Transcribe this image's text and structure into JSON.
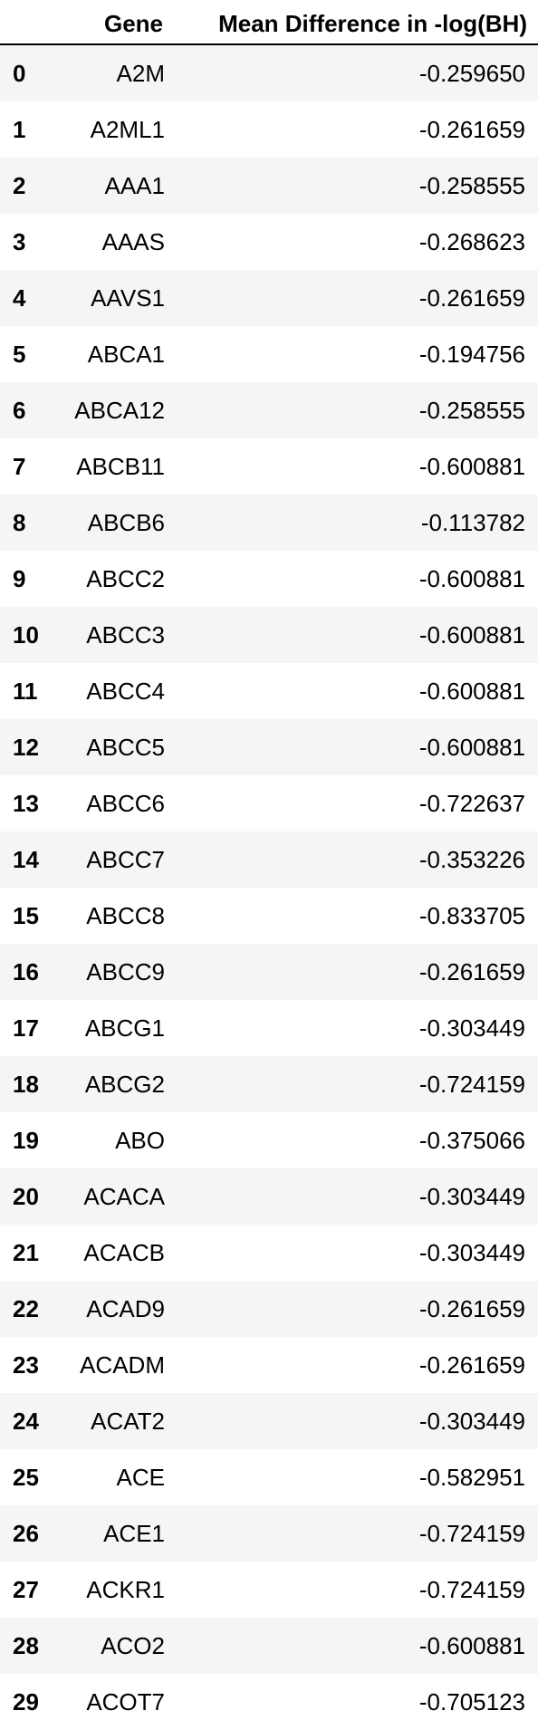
{
  "table": {
    "headers": {
      "index": "",
      "gene": "Gene",
      "value": "Mean Difference in -log(BH)"
    },
    "rows": [
      {
        "index": "0",
        "gene": "A2M",
        "value": "-0.259650"
      },
      {
        "index": "1",
        "gene": "A2ML1",
        "value": "-0.261659"
      },
      {
        "index": "2",
        "gene": "AAA1",
        "value": "-0.258555"
      },
      {
        "index": "3",
        "gene": "AAAS",
        "value": "-0.268623"
      },
      {
        "index": "4",
        "gene": "AAVS1",
        "value": "-0.261659"
      },
      {
        "index": "5",
        "gene": "ABCA1",
        "value": "-0.194756"
      },
      {
        "index": "6",
        "gene": "ABCA12",
        "value": "-0.258555"
      },
      {
        "index": "7",
        "gene": "ABCB11",
        "value": "-0.600881"
      },
      {
        "index": "8",
        "gene": "ABCB6",
        "value": "-0.113782"
      },
      {
        "index": "9",
        "gene": "ABCC2",
        "value": "-0.600881"
      },
      {
        "index": "10",
        "gene": "ABCC3",
        "value": "-0.600881"
      },
      {
        "index": "11",
        "gene": "ABCC4",
        "value": "-0.600881"
      },
      {
        "index": "12",
        "gene": "ABCC5",
        "value": "-0.600881"
      },
      {
        "index": "13",
        "gene": "ABCC6",
        "value": "-0.722637"
      },
      {
        "index": "14",
        "gene": "ABCC7",
        "value": "-0.353226"
      },
      {
        "index": "15",
        "gene": "ABCC8",
        "value": "-0.833705"
      },
      {
        "index": "16",
        "gene": "ABCC9",
        "value": "-0.261659"
      },
      {
        "index": "17",
        "gene": "ABCG1",
        "value": "-0.303449"
      },
      {
        "index": "18",
        "gene": "ABCG2",
        "value": "-0.724159"
      },
      {
        "index": "19",
        "gene": "ABO",
        "value": "-0.375066"
      },
      {
        "index": "20",
        "gene": "ACACA",
        "value": "-0.303449"
      },
      {
        "index": "21",
        "gene": "ACACB",
        "value": "-0.303449"
      },
      {
        "index": "22",
        "gene": "ACAD9",
        "value": "-0.261659"
      },
      {
        "index": "23",
        "gene": "ACADM",
        "value": "-0.261659"
      },
      {
        "index": "24",
        "gene": "ACAT2",
        "value": "-0.303449"
      },
      {
        "index": "25",
        "gene": "ACE",
        "value": "-0.582951"
      },
      {
        "index": "26",
        "gene": "ACE1",
        "value": "-0.724159"
      },
      {
        "index": "27",
        "gene": "ACKR1",
        "value": "-0.724159"
      },
      {
        "index": "28",
        "gene": "ACO2",
        "value": "-0.600881"
      },
      {
        "index": "29",
        "gene": "ACOT7",
        "value": "-0.705123"
      }
    ]
  }
}
